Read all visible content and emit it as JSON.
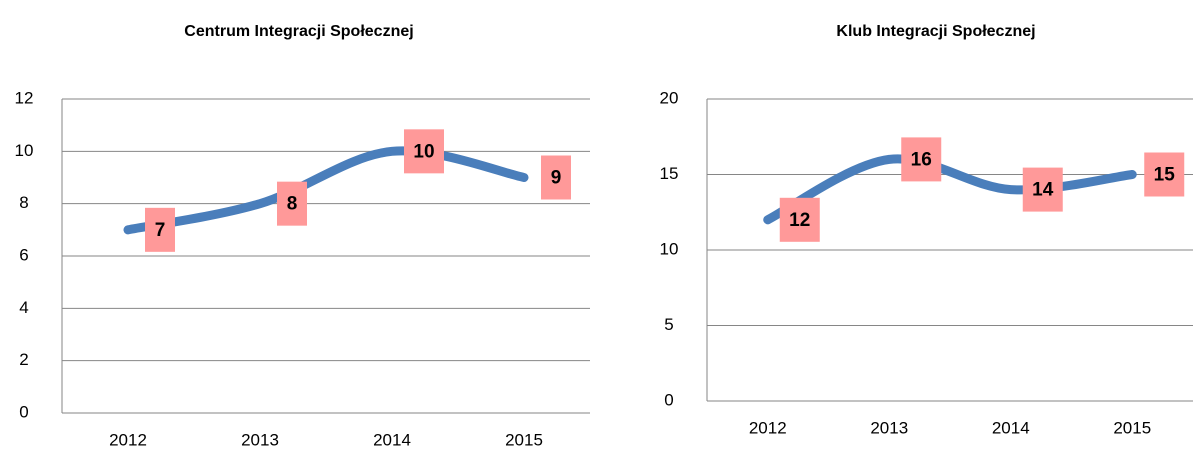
{
  "chart_data": [
    {
      "type": "line",
      "title": "Centrum Integracji Społecznej",
      "categories": [
        "2012",
        "2013",
        "2014",
        "2015"
      ],
      "series": [
        {
          "name": "Centrum Integracji Społecznej",
          "color": "#4a7ebb",
          "values": [
            7,
            8,
            10,
            9
          ]
        }
      ],
      "label_color": "#ff9999",
      "ylim": [
        0,
        12
      ],
      "yticks": [
        0,
        2,
        4,
        6,
        8,
        10,
        12
      ],
      "grid": true,
      "smooth": true
    },
    {
      "type": "line",
      "title": "Klub Integracji Społecznej",
      "categories": [
        "2012",
        "2013",
        "2014",
        "2015"
      ],
      "series": [
        {
          "name": "Klub Integracji Społecznej",
          "color": "#4a7ebb",
          "values": [
            12,
            16,
            14,
            15
          ]
        }
      ],
      "label_color": "#ff9999",
      "ylim": [
        0,
        20
      ],
      "yticks": [
        0,
        5,
        10,
        15,
        20
      ],
      "grid": true,
      "smooth": true
    }
  ]
}
